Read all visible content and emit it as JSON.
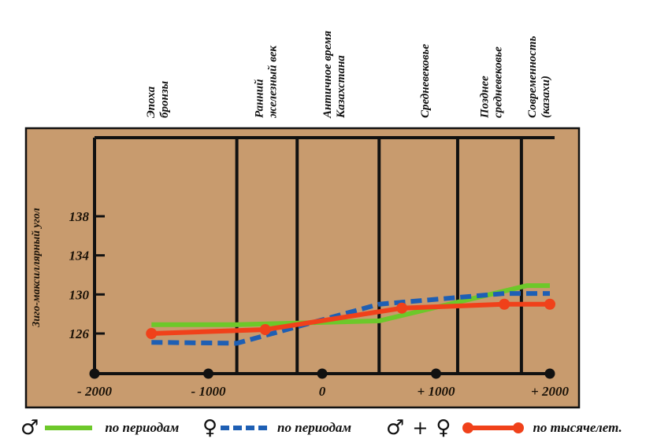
{
  "chart_data": {
    "type": "line",
    "title": "",
    "ylabel": "Зиго-максиллярный угол",
    "xlabel": "",
    "ylim": [
      122,
      144
    ],
    "xlim": [
      -2000,
      2000
    ],
    "y_ticks": [
      126,
      130,
      134,
      138
    ],
    "x_ticks": [
      {
        "value": -2000,
        "label": "- 2000"
      },
      {
        "value": -1000,
        "label": "- 1000"
      },
      {
        "value": 0,
        "label": "0"
      },
      {
        "value": 1000,
        "label": "+ 1000"
      },
      {
        "value": 2000,
        "label": "+ 2000"
      }
    ],
    "period_boundaries": [
      -750,
      -220,
      500,
      1190,
      1750
    ],
    "periods": [
      {
        "lines": [
          "Эпоха",
          "бронзы"
        ],
        "x": -1450
      },
      {
        "lines": [
          "Ранний",
          "железный век"
        ],
        "x": -500
      },
      {
        "lines": [
          "Античное время",
          "Казахстана"
        ],
        "x": 100
      },
      {
        "lines": [
          "Средневековье"
        ],
        "x": 900
      },
      {
        "lines": [
          "Позднее",
          "средневековье"
        ],
        "x": 1480
      },
      {
        "lines": [
          "Современность",
          "(казахи)"
        ],
        "x": 1900
      }
    ],
    "series": [
      {
        "name": "♂ по периодам",
        "color": "#6dc82a",
        "style": "solid",
        "points": [
          [
            -1500,
            126.9
          ],
          [
            -750,
            126.9
          ],
          [
            500,
            127.3
          ],
          [
            1800,
            130.9
          ],
          [
            2000,
            130.9
          ]
        ]
      },
      {
        "name": "♀ по периодам",
        "color": "#1e5fb4",
        "style": "dashed",
        "points": [
          [
            -1500,
            125.1
          ],
          [
            -750,
            125.0
          ],
          [
            500,
            129.0
          ],
          [
            1600,
            130.1
          ],
          [
            2000,
            130.1
          ]
        ]
      },
      {
        "name": "♂ + ♀ по тысячелет.",
        "color": "#f0411a",
        "style": "solid-markers",
        "points": [
          [
            -1500,
            126.0
          ],
          [
            -500,
            126.4
          ],
          [
            700,
            128.6
          ],
          [
            1600,
            129.0
          ],
          [
            2000,
            129.0
          ]
        ]
      }
    ],
    "grid": false,
    "legend_position": "bottom"
  },
  "legend": {
    "male_symbol": "♂",
    "female_symbol": "♀",
    "plus": "+",
    "green_label": "по периодам",
    "blue_label": "по периодам",
    "red_label": "по тысячелет."
  },
  "colors": {
    "panel_background": "#c89b6e",
    "axis": "#111111"
  }
}
